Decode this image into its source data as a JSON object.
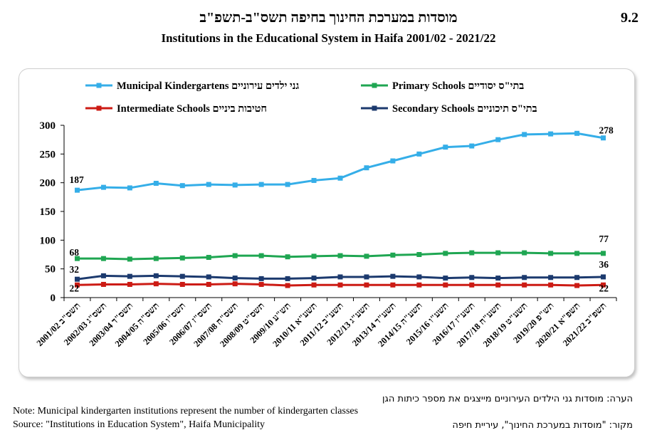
{
  "header": {
    "table_number": "9.2",
    "title_he": "מוסדות במערכת החינוך בחיפה תשס\"ב-תשפ\"ב",
    "title_en": "Institutions in the Educational System in Haifa 2001/02 - 2021/22"
  },
  "footer": {
    "note_he": "הערה: מוסדות גני הילדים העירוניים מייצגים את מספר כיתות הגן",
    "note_en": "Note: Municipal kindergarten institutions represent the number of kindergarten classes",
    "source_en": "Source: \"Institutions in Education System\", Haifa Municipality",
    "source_he": "מקור: \"מוסדות במערכת החינוך\", עיריית חיפה"
  },
  "chart_data": {
    "type": "line",
    "x": [
      "2001/02 תשס\"ב",
      "2002/03 תשס\"ג",
      "2003/04 תשס\"ד",
      "2004/05 תשס\"ה",
      "2005/06 תשס\"ו",
      "2006/07 תשס\"ז",
      "2007/08 תשס\"ח",
      "2008/09 תשס\"ט",
      "2009/10 תש\"ע",
      "2010/11 תשע\"א",
      "2011/12 תשע\"ב",
      "2012/13 תשע\"ג",
      "2013/14 תשע\"ד",
      "2014/15 תשע\"ה",
      "2015/16 תשע\"ו",
      "2016/17 תשע\"ז",
      "2017/18 תשע\"ח",
      "2018/19 תשע\"ט",
      "2019/20 תש\"פ",
      "2020/21 תשפ\"א",
      "2021/22 תשפ\"ב"
    ],
    "ylim": [
      0,
      300
    ],
    "yticks": [
      0,
      50,
      100,
      150,
      200,
      250,
      300
    ],
    "grid": false,
    "legend_position": "top",
    "series": [
      {
        "name": "Municipal Kindergartens גני ילדים עירוניים",
        "color": "#35aee8",
        "values": [
          187,
          192,
          191,
          199,
          195,
          197,
          196,
          197,
          197,
          204,
          208,
          226,
          238,
          250,
          262,
          264,
          275,
          284,
          285,
          286,
          278
        ],
        "labels": {
          "first": "187",
          "last": "278"
        }
      },
      {
        "name": "Primary Schools בתי\"ס יסודיים",
        "color": "#1fa652",
        "values": [
          68,
          68,
          67,
          68,
          69,
          70,
          73,
          73,
          71,
          72,
          73,
          72,
          74,
          75,
          77,
          78,
          78,
          78,
          77,
          77,
          77
        ],
        "labels": {
          "first": "68",
          "last": "77"
        }
      },
      {
        "name": "Intermediate Schools חטיבות ביניים",
        "color": "#cc1b14",
        "values": [
          22,
          23,
          23,
          24,
          23,
          23,
          24,
          23,
          21,
          22,
          22,
          22,
          22,
          22,
          22,
          22,
          22,
          22,
          22,
          21,
          22
        ],
        "labels": {
          "first": "22",
          "last": "22"
        }
      },
      {
        "name": "Secondary Schools בתי\"ס תיכוניים",
        "color": "#1c3a6e",
        "values": [
          32,
          38,
          37,
          38,
          37,
          36,
          34,
          33,
          33,
          34,
          36,
          36,
          37,
          36,
          34,
          35,
          34,
          35,
          35,
          35,
          36
        ],
        "labels": {
          "first": "32",
          "last": "36"
        }
      }
    ]
  }
}
